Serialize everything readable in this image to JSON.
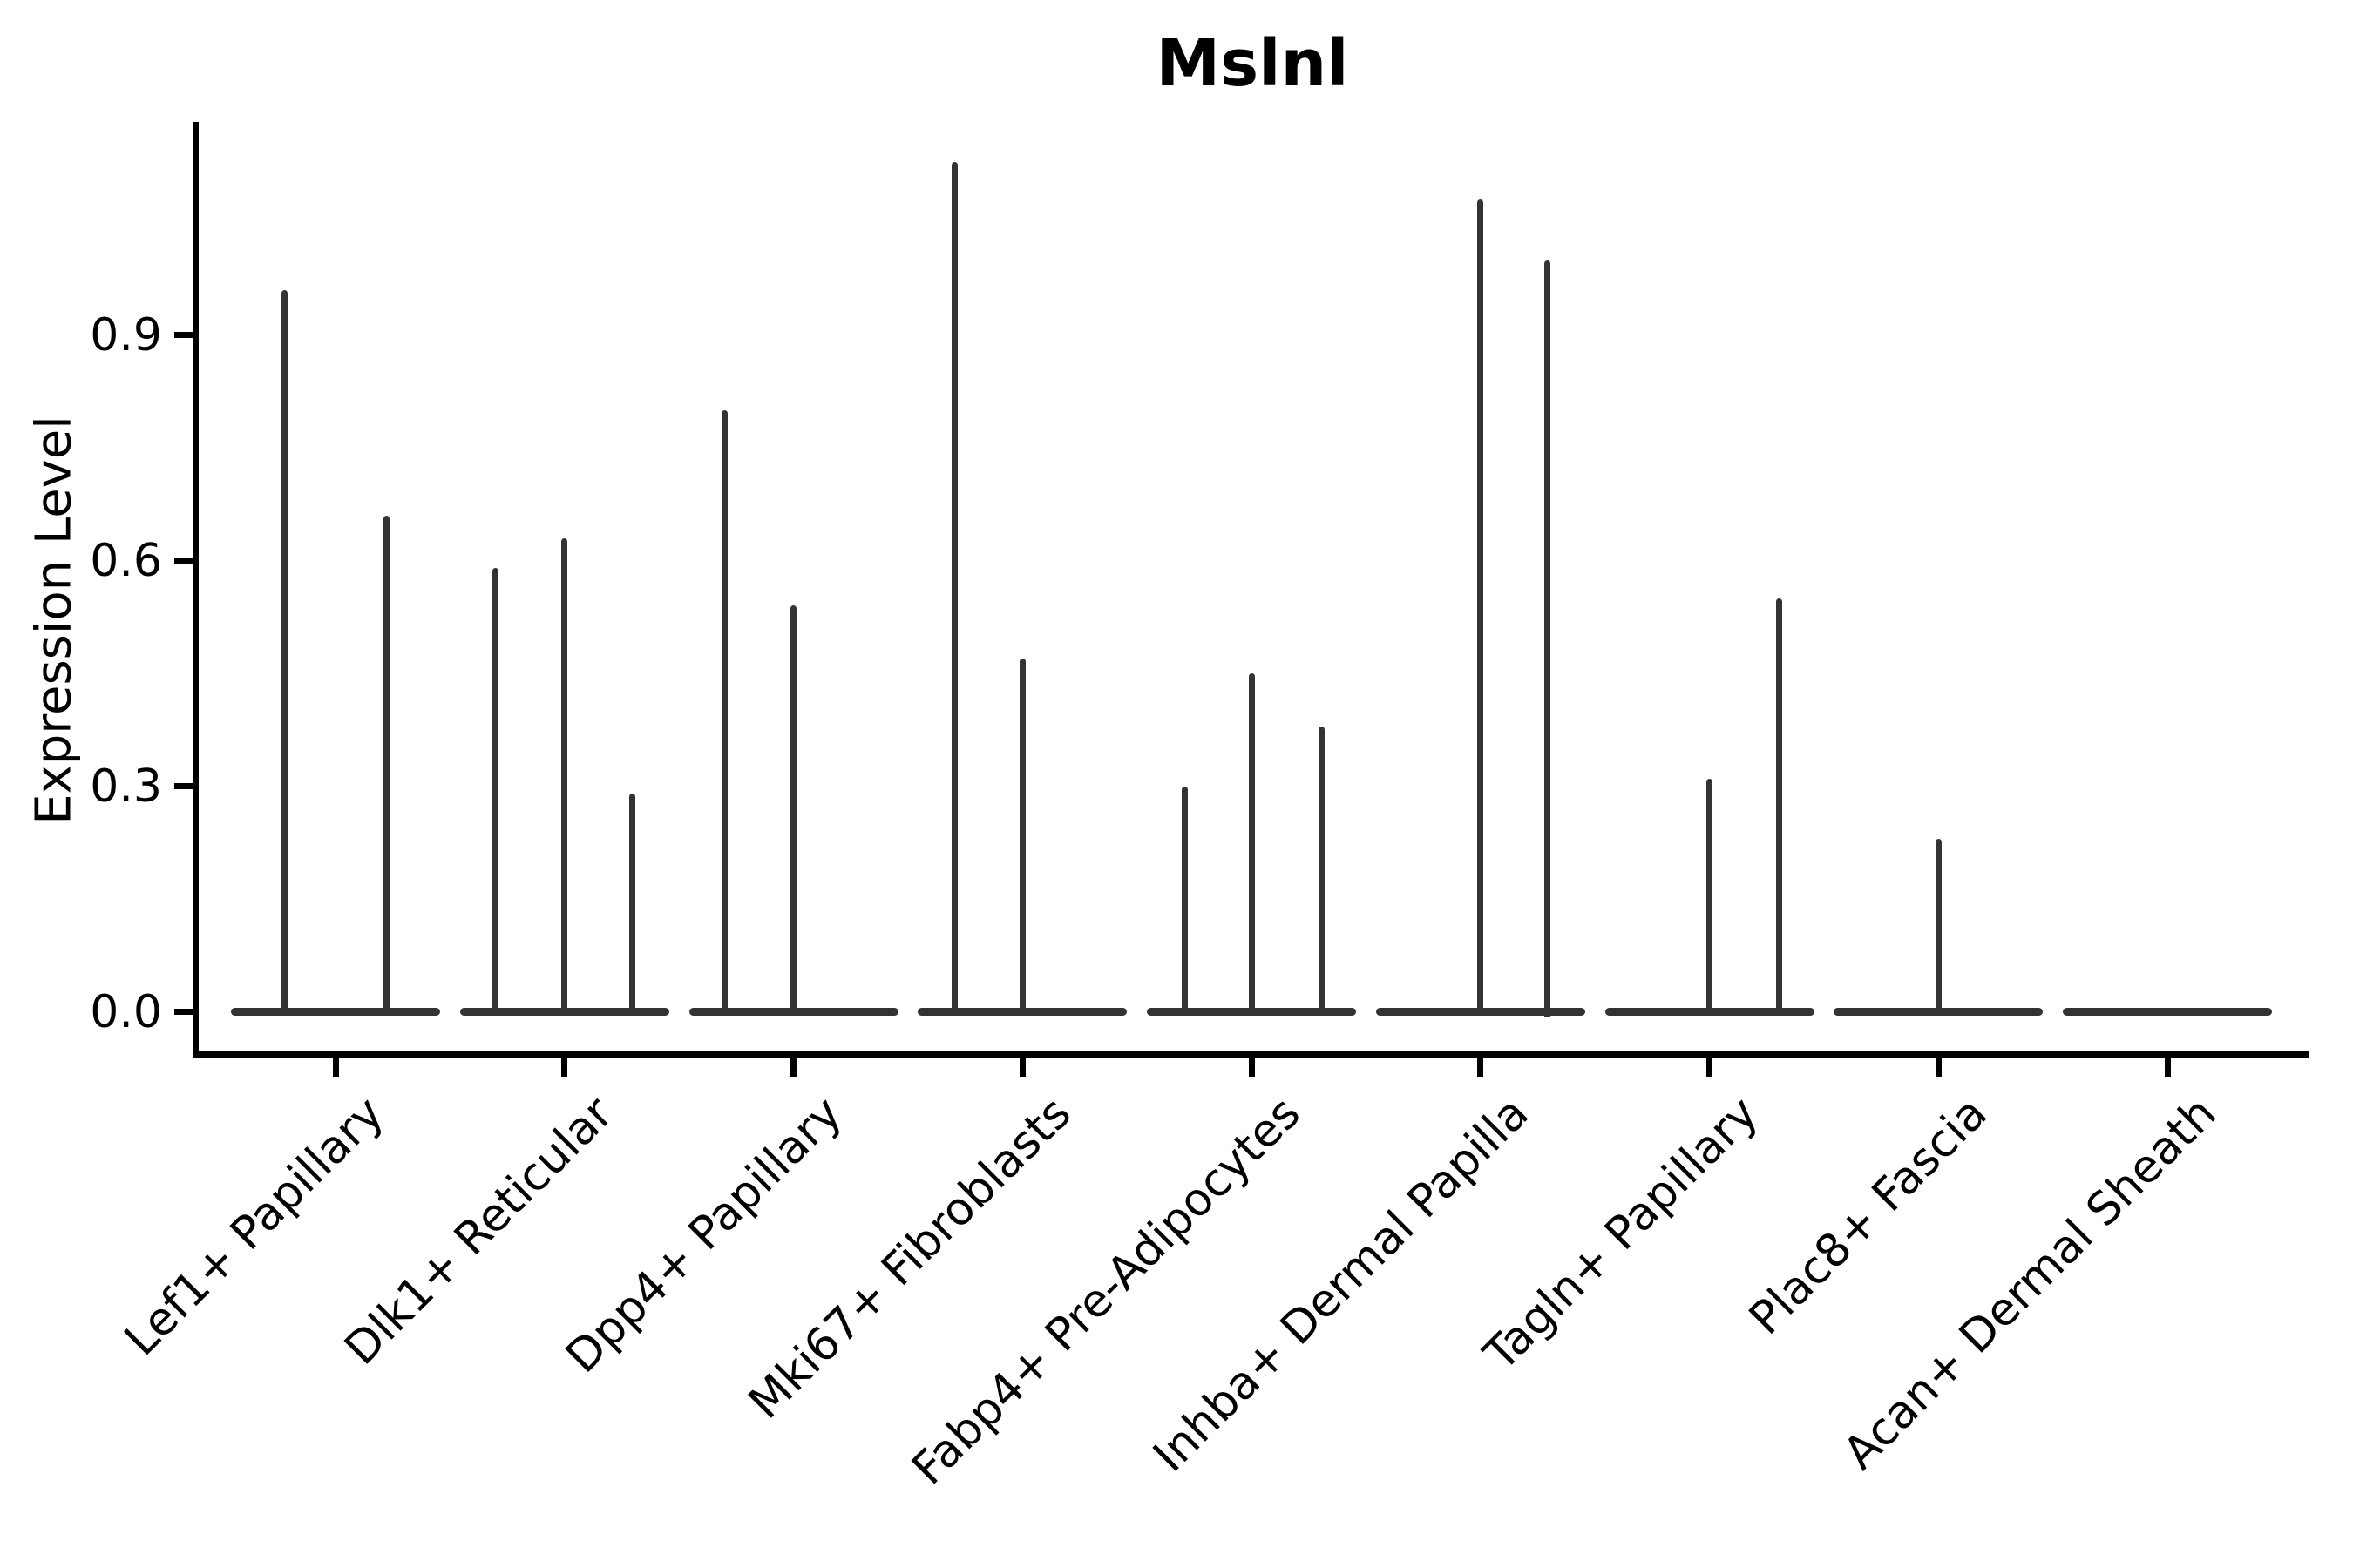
{
  "chart_data": {
    "type": "violin",
    "title": "Mslnl",
    "xlabel": "",
    "ylabel": "Expression Level",
    "ylim": [
      0,
      1.18
    ],
    "yticks": [
      0.0,
      0.3,
      0.6,
      0.9
    ],
    "ytick_labels": [
      "0.0",
      "0.3",
      "0.6",
      "0.9"
    ],
    "grid": false,
    "legend": "none",
    "categories": [
      {
        "label": "Lef1+ Papillary",
        "spikes": [
          {
            "offset": -59,
            "value": 0.96
          },
          {
            "offset": 58,
            "value": 0.66
          }
        ]
      },
      {
        "label": "Dlk1+ Reticular",
        "spikes": [
          {
            "offset": -79,
            "value": 0.59
          },
          {
            "offset": 0,
            "value": 0.63
          },
          {
            "offset": 78,
            "value": 0.29
          }
        ]
      },
      {
        "label": "Dpp4+ Papillary",
        "spikes": [
          {
            "offset": -79,
            "value": 0.8
          },
          {
            "offset": 0,
            "value": 0.54
          }
        ]
      },
      {
        "label": "Mki67+ Fibroblasts",
        "spikes": [
          {
            "offset": -78,
            "value": 1.13
          },
          {
            "offset": 0,
            "value": 0.47
          }
        ]
      },
      {
        "label": "Fabp4+ Pre-Adipocytes",
        "spikes": [
          {
            "offset": -77,
            "value": 0.3
          },
          {
            "offset": 0,
            "value": 0.45
          },
          {
            "offset": 80,
            "value": 0.38
          }
        ]
      },
      {
        "label": "Inhba+ Dermal Papilla",
        "spikes": [
          {
            "offset": 0,
            "value": 1.08
          },
          {
            "offset": 77,
            "value": 1.0
          }
        ]
      },
      {
        "label": "Tagln+ Papillary",
        "spikes": [
          {
            "offset": 0,
            "value": 0.31
          },
          {
            "offset": 80,
            "value": 0.55
          }
        ]
      },
      {
        "label": "Plac8+ Fascia",
        "spikes": [
          {
            "offset": 0,
            "value": 0.23
          }
        ]
      },
      {
        "label": "Acan+ Dermal Sheath",
        "spikes": []
      }
    ]
  },
  "colors": {
    "ink": "#333333",
    "axis": "#000000",
    "text": "#000000",
    "background": "#ffffff"
  }
}
